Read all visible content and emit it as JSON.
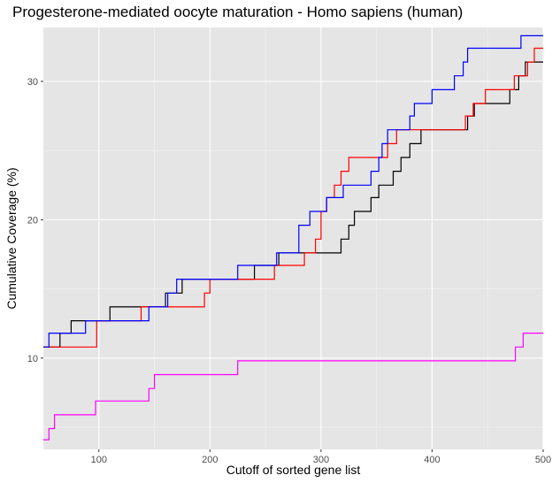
{
  "chart_data": {
    "type": "line",
    "title": "Progesterone-mediated oocyte maturation - Homo sapiens (human)",
    "xlabel": "Cutoff of sorted gene list",
    "ylabel": "Cumulative Coverage (%)",
    "xlim": [
      50,
      500
    ],
    "ylim": [
      3.4,
      33.9
    ],
    "x_ticks": [
      100,
      200,
      300,
      400,
      500
    ],
    "y_ticks": [
      10,
      20,
      30
    ],
    "grid": true,
    "background": "#e5e5e5",
    "legend": "none",
    "series": [
      {
        "color": "#000000",
        "points": [
          [
            50,
            10.8
          ],
          [
            65,
            10.8
          ],
          [
            65,
            11.8
          ],
          [
            75,
            11.8
          ],
          [
            75,
            12.7
          ],
          [
            110,
            12.7
          ],
          [
            110,
            13.7
          ],
          [
            160,
            13.7
          ],
          [
            160,
            14.7
          ],
          [
            175,
            14.7
          ],
          [
            175,
            15.7
          ],
          [
            240,
            15.7
          ],
          [
            240,
            16.7
          ],
          [
            262,
            16.7
          ],
          [
            262,
            17.6
          ],
          [
            318,
            17.6
          ],
          [
            318,
            18.6
          ],
          [
            325,
            18.6
          ],
          [
            325,
            19.6
          ],
          [
            330,
            19.6
          ],
          [
            330,
            20.6
          ],
          [
            345,
            20.6
          ],
          [
            345,
            21.6
          ],
          [
            352,
            21.6
          ],
          [
            352,
            22.5
          ],
          [
            365,
            22.5
          ],
          [
            365,
            23.5
          ],
          [
            372,
            23.5
          ],
          [
            372,
            24.5
          ],
          [
            380,
            24.5
          ],
          [
            380,
            25.5
          ],
          [
            390,
            25.5
          ],
          [
            390,
            26.5
          ],
          [
            432,
            26.5
          ],
          [
            432,
            27.5
          ],
          [
            438,
            27.5
          ],
          [
            438,
            28.4
          ],
          [
            470,
            28.4
          ],
          [
            470,
            29.4
          ],
          [
            478,
            29.4
          ],
          [
            478,
            30.4
          ],
          [
            484,
            30.4
          ],
          [
            484,
            31.4
          ],
          [
            500,
            31.4
          ]
        ]
      },
      {
        "color": "#ff0000",
        "points": [
          [
            50,
            10.8
          ],
          [
            98,
            10.8
          ],
          [
            98,
            12.7
          ],
          [
            138,
            12.7
          ],
          [
            138,
            13.7
          ],
          [
            195,
            13.7
          ],
          [
            195,
            14.7
          ],
          [
            200,
            14.7
          ],
          [
            200,
            15.7
          ],
          [
            258,
            15.7
          ],
          [
            258,
            16.7
          ],
          [
            285,
            16.7
          ],
          [
            285,
            17.6
          ],
          [
            295,
            17.6
          ],
          [
            295,
            18.6
          ],
          [
            300,
            18.6
          ],
          [
            300,
            20.6
          ],
          [
            305,
            20.6
          ],
          [
            305,
            21.6
          ],
          [
            312,
            21.6
          ],
          [
            312,
            22.5
          ],
          [
            318,
            22.5
          ],
          [
            318,
            23.5
          ],
          [
            325,
            23.5
          ],
          [
            325,
            24.5
          ],
          [
            360,
            24.5
          ],
          [
            360,
            25.5
          ],
          [
            368,
            25.5
          ],
          [
            368,
            26.5
          ],
          [
            430,
            26.5
          ],
          [
            430,
            27.5
          ],
          [
            437,
            27.5
          ],
          [
            437,
            28.4
          ],
          [
            448,
            28.4
          ],
          [
            448,
            29.4
          ],
          [
            474,
            29.4
          ],
          [
            474,
            30.4
          ],
          [
            486,
            30.4
          ],
          [
            486,
            31.4
          ],
          [
            492,
            31.4
          ],
          [
            492,
            32.4
          ],
          [
            500,
            32.4
          ]
        ]
      },
      {
        "color": "#0000ff",
        "points": [
          [
            50,
            10.8
          ],
          [
            55,
            10.8
          ],
          [
            55,
            11.8
          ],
          [
            88,
            11.8
          ],
          [
            88,
            12.7
          ],
          [
            145,
            12.7
          ],
          [
            145,
            13.7
          ],
          [
            162,
            13.7
          ],
          [
            162,
            14.7
          ],
          [
            170,
            14.7
          ],
          [
            170,
            15.7
          ],
          [
            225,
            15.7
          ],
          [
            225,
            16.7
          ],
          [
            260,
            16.7
          ],
          [
            260,
            17.6
          ],
          [
            280,
            17.6
          ],
          [
            280,
            19.6
          ],
          [
            290,
            19.6
          ],
          [
            290,
            20.6
          ],
          [
            305,
            20.6
          ],
          [
            305,
            21.6
          ],
          [
            320,
            21.6
          ],
          [
            320,
            22.5
          ],
          [
            345,
            22.5
          ],
          [
            345,
            23.5
          ],
          [
            352,
            23.5
          ],
          [
            352,
            24.5
          ],
          [
            355,
            24.5
          ],
          [
            355,
            25.5
          ],
          [
            360,
            25.5
          ],
          [
            360,
            26.5
          ],
          [
            380,
            26.5
          ],
          [
            380,
            27.5
          ],
          [
            384,
            27.5
          ],
          [
            384,
            28.4
          ],
          [
            400,
            28.4
          ],
          [
            400,
            29.4
          ],
          [
            420,
            29.4
          ],
          [
            420,
            30.4
          ],
          [
            428,
            30.4
          ],
          [
            428,
            31.4
          ],
          [
            432,
            31.4
          ],
          [
            432,
            32.4
          ],
          [
            480,
            32.4
          ],
          [
            480,
            33.3
          ],
          [
            500,
            33.3
          ]
        ]
      },
      {
        "color": "#ff00ff",
        "points": [
          [
            50,
            4.1
          ],
          [
            55,
            4.1
          ],
          [
            55,
            4.9
          ],
          [
            60,
            4.9
          ],
          [
            60,
            5.9
          ],
          [
            97,
            5.9
          ],
          [
            97,
            6.9
          ],
          [
            145,
            6.9
          ],
          [
            145,
            7.8
          ],
          [
            150,
            7.8
          ],
          [
            150,
            8.8
          ],
          [
            225,
            8.8
          ],
          [
            225,
            9.8
          ],
          [
            475,
            9.8
          ],
          [
            475,
            10.8
          ],
          [
            482,
            10.8
          ],
          [
            482,
            11.8
          ],
          [
            500,
            11.8
          ]
        ]
      }
    ]
  }
}
